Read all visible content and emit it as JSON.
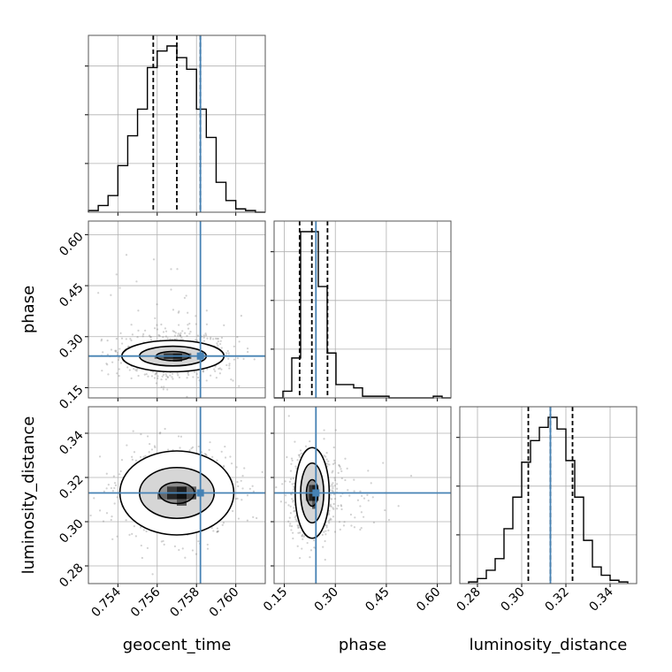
{
  "chart_data": {
    "type": "corner",
    "parameters": [
      {
        "name": "geocent_time",
        "label": "geocent_time",
        "range": [
          0.7525,
          0.7615
        ],
        "ticks": [
          0.754,
          0.756,
          0.758,
          0.76
        ],
        "tick_labels": [
          "0.754",
          "0.756",
          "0.758",
          "0.760"
        ],
        "quantiles": [
          0.7558,
          0.757,
          0.7582
        ],
        "truth": 0.7582,
        "hist_bins": [
          0.7525,
          0.753,
          0.7535,
          0.754,
          0.7545,
          0.755,
          0.7555,
          0.756,
          0.7565,
          0.757,
          0.7575,
          0.758,
          0.7585,
          0.759,
          0.7595,
          0.76,
          0.7605,
          0.761,
          0.7615
        ],
        "hist_counts": [
          0.01,
          0.04,
          0.1,
          0.28,
          0.46,
          0.62,
          0.87,
          0.97,
          1.0,
          0.93,
          0.86,
          0.62,
          0.45,
          0.18,
          0.07,
          0.02,
          0.01,
          0.0
        ]
      },
      {
        "name": "phase",
        "label": "phase",
        "range": [
          0.12,
          0.64
        ],
        "ticks": [
          0.15,
          0.3,
          0.45,
          0.6
        ],
        "tick_labels": [
          "0.15",
          "0.30",
          "0.45",
          "0.60"
        ],
        "quantiles": [
          0.195,
          0.231,
          0.277
        ],
        "truth": 0.243,
        "hist_bins": [
          0.12,
          0.146,
          0.172,
          0.198,
          0.224,
          0.25,
          0.276,
          0.302,
          0.328,
          0.354,
          0.38,
          0.406,
          0.432,
          0.458,
          0.484,
          0.51,
          0.536,
          0.562,
          0.588,
          0.614,
          0.64
        ],
        "hist_counts": [
          0.0,
          0.04,
          0.24,
          1.0,
          1.0,
          0.67,
          0.27,
          0.08,
          0.08,
          0.06,
          0.01,
          0.01,
          0.01,
          0.0,
          0.0,
          0.0,
          0.0,
          0.0,
          0.01,
          0.0
        ]
      },
      {
        "name": "luminosity_distance",
        "label": "luminosity_distance",
        "range": [
          0.272,
          0.352
        ],
        "ticks": [
          0.28,
          0.3,
          0.32,
          0.34
        ],
        "tick_labels": [
          "0.28",
          "0.30",
          "0.32",
          "0.34"
        ],
        "quantiles": [
          0.303,
          0.313,
          0.323
        ],
        "truth": 0.313,
        "hist_bins": [
          0.276,
          0.28,
          0.284,
          0.288,
          0.292,
          0.296,
          0.3,
          0.304,
          0.308,
          0.312,
          0.316,
          0.32,
          0.324,
          0.328,
          0.332,
          0.336,
          0.34,
          0.344,
          0.348
        ],
        "hist_counts": [
          0.01,
          0.03,
          0.08,
          0.15,
          0.33,
          0.52,
          0.73,
          0.86,
          0.94,
          1.0,
          0.93,
          0.74,
          0.52,
          0.26,
          0.1,
          0.05,
          0.02,
          0.01
        ]
      }
    ],
    "pairs": [
      {
        "x": "geocent_time",
        "y": "phase",
        "center": [
          0.7568,
          0.243
        ],
        "sigma": [
          0.0013,
          0.03
        ],
        "levels": [
          [
            0.00085,
            0.0135
          ],
          [
            0.0017,
            0.029
          ],
          [
            0.0026,
            0.046
          ]
        ]
      },
      {
        "x": "geocent_time",
        "y": "luminosity_distance",
        "center": [
          0.757,
          0.313
        ],
        "sigma": [
          0.0013,
          0.0085
        ],
        "levels": [
          [
            0.0009,
            0.0048
          ],
          [
            0.0019,
            0.0115
          ],
          [
            0.0029,
            0.019
          ]
        ]
      },
      {
        "x": "phase",
        "y": "luminosity_distance",
        "center": [
          0.232,
          0.313
        ],
        "sigma": [
          0.03,
          0.0085
        ],
        "levels": [
          [
            0.017,
            0.006
          ],
          [
            0.034,
            0.0135
          ],
          [
            0.05,
            0.0205
          ]
        ]
      }
    ],
    "truth_color": "#4682b4",
    "quantile_style": "dashed",
    "grid": true
  }
}
